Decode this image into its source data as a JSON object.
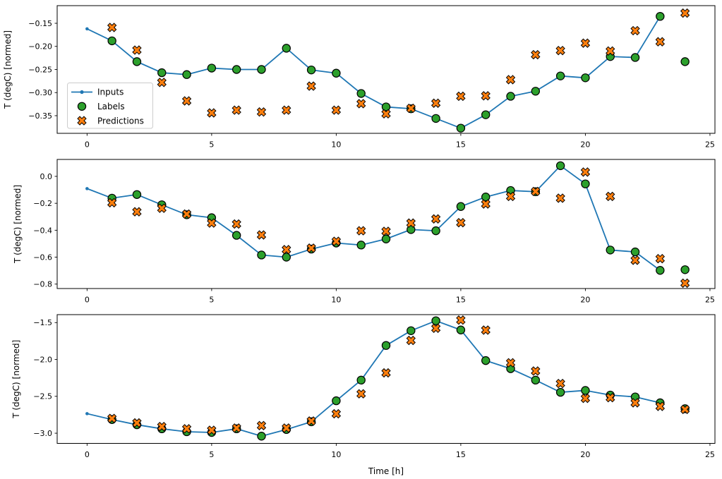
{
  "figure": {
    "background": "#ffffff",
    "x_axis_label": "Time [h]",
    "y_axis_label": "T (degC) [normed]",
    "legend": {
      "position": "upper left inside top subplot",
      "entries": [
        "Inputs",
        "Labels",
        "Predictions"
      ],
      "border_color": "#cccccc",
      "background": "#ffffff"
    },
    "colors": {
      "inputs": "#1f77b4",
      "labels": "#2ca02c",
      "predictions": "#ff7f0e",
      "marker_edge": "#000000"
    }
  },
  "chart_data": [
    {
      "type": "line",
      "title": "",
      "xlabel": "",
      "ylabel": "T (degC) [normed]",
      "xlim": [
        -1.2,
        25.2
      ],
      "ylim": [
        -0.3882,
        -0.1118
      ],
      "grid": false,
      "legend_visible": true,
      "xtick_values": [
        0,
        5,
        10,
        15,
        20,
        25
      ],
      "xtick_labels": [
        "0",
        "5",
        "10",
        "15",
        "20",
        "25"
      ],
      "ytick_values": [
        -0.15,
        -0.2,
        -0.25,
        -0.3,
        -0.35
      ],
      "ytick_labels": [
        "−0.15",
        "−0.20",
        "−0.25",
        "−0.30",
        "−0.35"
      ],
      "series": [
        {
          "name": "Inputs",
          "kind": "line",
          "marker": "dot",
          "color": "#1f77b4",
          "x": [
            0,
            1,
            2,
            3,
            4,
            5,
            6,
            7,
            8,
            9,
            10,
            11,
            12,
            13,
            14,
            15,
            16,
            17,
            18,
            19,
            20,
            21,
            22,
            23
          ],
          "y": [
            -0.162,
            -0.188,
            -0.233,
            -0.257,
            -0.261,
            -0.247,
            -0.25,
            -0.25,
            -0.204,
            -0.251,
            -0.258,
            -0.302,
            -0.331,
            -0.335,
            -0.356,
            -0.377,
            -0.348,
            -0.308,
            -0.297,
            -0.264,
            -0.268,
            -0.222,
            -0.224,
            -0.135
          ]
        },
        {
          "name": "Labels",
          "kind": "scatter",
          "marker": "circle",
          "color": "#2ca02c",
          "edge": "#000000",
          "x": [
            1,
            2,
            3,
            4,
            5,
            6,
            7,
            8,
            9,
            10,
            11,
            12,
            13,
            14,
            15,
            16,
            17,
            18,
            19,
            20,
            21,
            22,
            23,
            24
          ],
          "y": [
            -0.188,
            -0.233,
            -0.257,
            -0.261,
            -0.247,
            -0.25,
            -0.25,
            -0.204,
            -0.251,
            -0.258,
            -0.302,
            -0.331,
            -0.335,
            -0.356,
            -0.377,
            -0.348,
            -0.308,
            -0.297,
            -0.264,
            -0.268,
            -0.222,
            -0.224,
            -0.135,
            -0.233
          ]
        },
        {
          "name": "Predictions",
          "kind": "scatter",
          "marker": "X",
          "color": "#ff7f0e",
          "edge": "#000000",
          "x": [
            1,
            2,
            3,
            4,
            5,
            6,
            7,
            8,
            9,
            10,
            11,
            12,
            13,
            14,
            15,
            16,
            17,
            18,
            19,
            20,
            21,
            22,
            23,
            24
          ],
          "y": [
            -0.159,
            -0.208,
            -0.278,
            -0.318,
            -0.344,
            -0.338,
            -0.342,
            -0.338,
            -0.286,
            -0.338,
            -0.324,
            -0.346,
            -0.334,
            -0.323,
            -0.308,
            -0.307,
            -0.272,
            -0.218,
            -0.209,
            -0.193,
            -0.21,
            -0.166,
            -0.19,
            -0.128
          ]
        }
      ]
    },
    {
      "type": "line",
      "title": "",
      "xlabel": "",
      "ylabel": "T (degC) [normed]",
      "xlim": [
        -1.2,
        25.2
      ],
      "ylim": [
        -0.8329,
        0.1257
      ],
      "grid": false,
      "legend_visible": false,
      "xtick_values": [
        0,
        5,
        10,
        15,
        20,
        25
      ],
      "xtick_labels": [
        "0",
        "5",
        "10",
        "15",
        "20",
        "25"
      ],
      "ytick_values": [
        0.0,
        -0.2,
        -0.4,
        -0.6,
        -0.8
      ],
      "ytick_labels": [
        "0.0",
        "−0.2",
        "−0.4",
        "−0.6",
        "−0.8"
      ],
      "series": [
        {
          "name": "Inputs",
          "kind": "line",
          "marker": "dot",
          "color": "#1f77b4",
          "x": [
            0,
            1,
            2,
            3,
            4,
            5,
            6,
            7,
            8,
            9,
            10,
            11,
            12,
            13,
            14,
            15,
            16,
            17,
            18,
            19,
            20,
            21,
            22,
            23
          ],
          "y": [
            -0.091,
            -0.162,
            -0.135,
            -0.211,
            -0.285,
            -0.307,
            -0.438,
            -0.584,
            -0.6,
            -0.54,
            -0.495,
            -0.51,
            -0.465,
            -0.395,
            -0.404,
            -0.224,
            -0.153,
            -0.105,
            -0.114,
            0.079,
            -0.056,
            -0.547,
            -0.561,
            -0.698
          ]
        },
        {
          "name": "Labels",
          "kind": "scatter",
          "marker": "circle",
          "color": "#2ca02c",
          "edge": "#000000",
          "x": [
            1,
            2,
            3,
            4,
            5,
            6,
            7,
            8,
            9,
            10,
            11,
            12,
            13,
            14,
            15,
            16,
            17,
            18,
            19,
            20,
            21,
            22,
            23,
            24
          ],
          "y": [
            -0.162,
            -0.135,
            -0.211,
            -0.285,
            -0.307,
            -0.438,
            -0.584,
            -0.6,
            -0.54,
            -0.495,
            -0.51,
            -0.465,
            -0.395,
            -0.404,
            -0.224,
            -0.153,
            -0.105,
            -0.114,
            0.079,
            -0.056,
            -0.547,
            -0.561,
            -0.698,
            -0.693
          ]
        },
        {
          "name": "Predictions",
          "kind": "scatter",
          "marker": "X",
          "color": "#ff7f0e",
          "edge": "#000000",
          "x": [
            1,
            2,
            3,
            4,
            5,
            6,
            7,
            8,
            9,
            10,
            11,
            12,
            13,
            14,
            15,
            16,
            17,
            18,
            19,
            20,
            21,
            22,
            23,
            24
          ],
          "y": [
            -0.196,
            -0.263,
            -0.237,
            -0.28,
            -0.347,
            -0.354,
            -0.435,
            -0.544,
            -0.533,
            -0.482,
            -0.404,
            -0.408,
            -0.347,
            -0.316,
            -0.344,
            -0.205,
            -0.149,
            -0.112,
            -0.162,
            0.032,
            -0.149,
            -0.623,
            -0.611,
            -0.793
          ]
        }
      ]
    },
    {
      "type": "line",
      "title": "",
      "xlabel": "Time [h]",
      "ylabel": "T (degC) [normed]",
      "xlim": [
        -1.2,
        25.2
      ],
      "ylim": [
        -3.138,
        -1.392
      ],
      "grid": false,
      "legend_visible": false,
      "xtick_values": [
        0,
        5,
        10,
        15,
        20,
        25
      ],
      "xtick_labels": [
        "0",
        "5",
        "10",
        "15",
        "20",
        "25"
      ],
      "ytick_values": [
        -1.5,
        -2.0,
        -2.5,
        -3.0
      ],
      "ytick_labels": [
        "−1.5",
        "−2.0",
        "−2.5",
        "−3.0"
      ],
      "series": [
        {
          "name": "Inputs",
          "kind": "line",
          "marker": "dot",
          "color": "#1f77b4",
          "x": [
            0,
            1,
            2,
            3,
            4,
            5,
            6,
            7,
            8,
            9,
            10,
            11,
            12,
            13,
            14,
            15,
            16,
            17,
            18,
            19,
            20,
            21,
            22,
            23
          ],
          "y": [
            -2.735,
            -2.815,
            -2.885,
            -2.94,
            -2.98,
            -2.99,
            -2.94,
            -3.04,
            -2.95,
            -2.845,
            -2.56,
            -2.28,
            -1.81,
            -1.61,
            -1.475,
            -1.6,
            -2.015,
            -2.125,
            -2.28,
            -2.445,
            -2.42,
            -2.483,
            -2.508,
            -2.588
          ]
        },
        {
          "name": "Labels",
          "kind": "scatter",
          "marker": "circle",
          "color": "#2ca02c",
          "edge": "#000000",
          "x": [
            1,
            2,
            3,
            4,
            5,
            6,
            7,
            8,
            9,
            10,
            11,
            12,
            13,
            14,
            15,
            16,
            17,
            18,
            19,
            20,
            21,
            22,
            23,
            24
          ],
          "y": [
            -2.815,
            -2.885,
            -2.94,
            -2.98,
            -2.99,
            -2.94,
            -3.04,
            -2.95,
            -2.845,
            -2.56,
            -2.28,
            -1.81,
            -1.61,
            -1.475,
            -1.6,
            -2.015,
            -2.125,
            -2.28,
            -2.445,
            -2.42,
            -2.483,
            -2.508,
            -2.588,
            -2.668
          ]
        },
        {
          "name": "Predictions",
          "kind": "scatter",
          "marker": "X",
          "color": "#ff7f0e",
          "edge": "#000000",
          "x": [
            1,
            2,
            3,
            4,
            5,
            6,
            7,
            8,
            9,
            10,
            11,
            12,
            13,
            14,
            15,
            16,
            17,
            18,
            19,
            20,
            21,
            22,
            23,
            24
          ],
          "y": [
            -2.8,
            -2.86,
            -2.91,
            -2.94,
            -2.96,
            -2.93,
            -2.897,
            -2.93,
            -2.835,
            -2.737,
            -2.466,
            -2.182,
            -1.742,
            -1.577,
            -1.466,
            -1.602,
            -2.045,
            -2.157,
            -2.326,
            -2.527,
            -2.518,
            -2.588,
            -2.636,
            -2.677
          ]
        }
      ]
    }
  ]
}
